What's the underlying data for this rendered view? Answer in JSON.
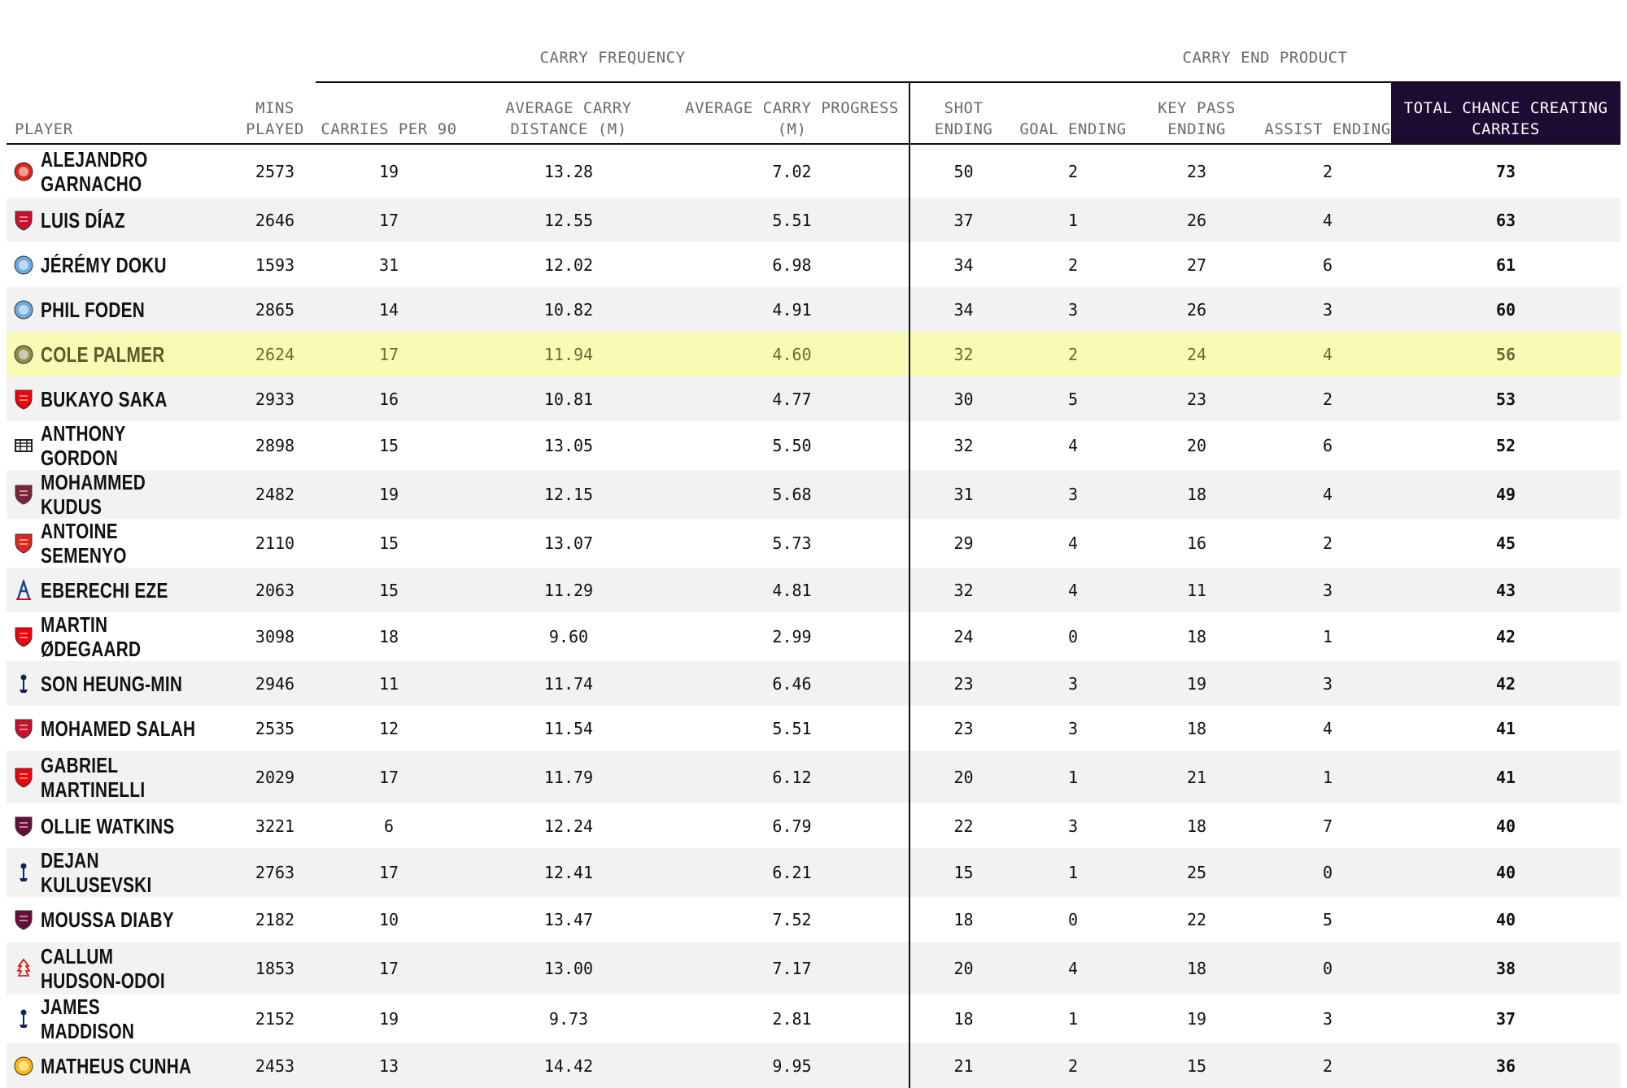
{
  "groups": {
    "frequency": "CARRY FREQUENCY",
    "end_product": "CARRY END PRODUCT"
  },
  "columns": {
    "player": "PLAYER",
    "mins": "MINS PLAYED",
    "carries": "CARRIES PER 90",
    "distance": "AVERAGE CARRY DISTANCE (M)",
    "progress": "AVERAGE CARRY PROGRESS (M)",
    "shot": "SHOT ENDING",
    "goal": "GOAL ENDING",
    "keypass": "KEY PASS ENDING",
    "assist": "ASSIST ENDING",
    "total": "TOTAL CHANCE CREATING CARRIES"
  },
  "colors": {
    "highlight_row": "#f9fbb4",
    "total_header_bg": "#1c0b33",
    "stripe": "#f2f2f2",
    "man_utd": "#da291c",
    "liverpool": "#c8102e",
    "man_city": "#6cabdd",
    "chelsea": "#8a8f4a",
    "arsenal": "#ef0107",
    "newcastle": "#241f20",
    "west_ham": "#7a263a",
    "bournemouth": "#da291c",
    "crystal_palace": "#1b458f",
    "tottenham": "#132257",
    "aston_villa": "#670e36",
    "nottingham_forest": "#dd0000",
    "wolves": "#fdb913"
  },
  "rows": [
    {
      "player": "ALEJANDRO GARNACHO",
      "club": "man_utd",
      "icon": "man-utd-crest-icon",
      "mins": "2573",
      "carries": "19",
      "distance": "13.28",
      "progress": "7.02",
      "shot": "50",
      "goal": "2",
      "keypass": "23",
      "assist": "2",
      "total": "73"
    },
    {
      "player": "LUIS DÍAZ",
      "club": "liverpool",
      "icon": "liverpool-crest-icon",
      "mins": "2646",
      "carries": "17",
      "distance": "12.55",
      "progress": "5.51",
      "shot": "37",
      "goal": "1",
      "keypass": "26",
      "assist": "4",
      "total": "63"
    },
    {
      "player": "JÉRÉMY DOKU",
      "club": "man_city",
      "icon": "man-city-crest-icon",
      "mins": "1593",
      "carries": "31",
      "distance": "12.02",
      "progress": "6.98",
      "shot": "34",
      "goal": "2",
      "keypass": "27",
      "assist": "6",
      "total": "61"
    },
    {
      "player": "PHIL FODEN",
      "club": "man_city",
      "icon": "man-city-crest-icon",
      "mins": "2865",
      "carries": "14",
      "distance": "10.82",
      "progress": "4.91",
      "shot": "34",
      "goal": "3",
      "keypass": "26",
      "assist": "3",
      "total": "60"
    },
    {
      "player": "COLE PALMER",
      "club": "chelsea",
      "icon": "chelsea-crest-icon",
      "highlight": true,
      "mins": "2624",
      "carries": "17",
      "distance": "11.94",
      "progress": "4.60",
      "shot": "32",
      "goal": "2",
      "keypass": "24",
      "assist": "4",
      "total": "56"
    },
    {
      "player": "BUKAYO SAKA",
      "club": "arsenal",
      "icon": "arsenal-crest-icon",
      "mins": "2933",
      "carries": "16",
      "distance": "10.81",
      "progress": "4.77",
      "shot": "30",
      "goal": "5",
      "keypass": "23",
      "assist": "2",
      "total": "53"
    },
    {
      "player": "ANTHONY GORDON",
      "club": "newcastle",
      "icon": "newcastle-crest-icon",
      "mins": "2898",
      "carries": "15",
      "distance": "13.05",
      "progress": "5.50",
      "shot": "32",
      "goal": "4",
      "keypass": "20",
      "assist": "6",
      "total": "52"
    },
    {
      "player": "MOHAMMED KUDUS",
      "club": "west_ham",
      "icon": "west-ham-crest-icon",
      "mins": "2482",
      "carries": "19",
      "distance": "12.15",
      "progress": "5.68",
      "shot": "31",
      "goal": "3",
      "keypass": "18",
      "assist": "4",
      "total": "49"
    },
    {
      "player": "ANTOINE SEMENYO",
      "club": "bournemouth",
      "icon": "bournemouth-crest-icon",
      "mins": "2110",
      "carries": "15",
      "distance": "13.07",
      "progress": "5.73",
      "shot": "29",
      "goal": "4",
      "keypass": "16",
      "assist": "2",
      "total": "45"
    },
    {
      "player": "EBERECHI EZE",
      "club": "crystal_palace",
      "icon": "crystal-palace-crest-icon",
      "mins": "2063",
      "carries": "15",
      "distance": "11.29",
      "progress": "4.81",
      "shot": "32",
      "goal": "4",
      "keypass": "11",
      "assist": "3",
      "total": "43"
    },
    {
      "player": "MARTIN ØDEGAARD",
      "club": "arsenal",
      "icon": "arsenal-crest-icon",
      "mins": "3098",
      "carries": "18",
      "distance": "9.60",
      "progress": "2.99",
      "shot": "24",
      "goal": "0",
      "keypass": "18",
      "assist": "1",
      "total": "42"
    },
    {
      "player": "SON HEUNG-MIN",
      "club": "tottenham",
      "icon": "tottenham-crest-icon",
      "mins": "2946",
      "carries": "11",
      "distance": "11.74",
      "progress": "6.46",
      "shot": "23",
      "goal": "3",
      "keypass": "19",
      "assist": "3",
      "total": "42"
    },
    {
      "player": "MOHAMED SALAH",
      "club": "liverpool",
      "icon": "liverpool-crest-icon",
      "mins": "2535",
      "carries": "12",
      "distance": "11.54",
      "progress": "5.51",
      "shot": "23",
      "goal": "3",
      "keypass": "18",
      "assist": "4",
      "total": "41"
    },
    {
      "player": "GABRIEL MARTINELLI",
      "club": "arsenal",
      "icon": "arsenal-crest-icon",
      "mins": "2029",
      "carries": "17",
      "distance": "11.79",
      "progress": "6.12",
      "shot": "20",
      "goal": "1",
      "keypass": "21",
      "assist": "1",
      "total": "41"
    },
    {
      "player": "OLLIE WATKINS",
      "club": "aston_villa",
      "icon": "aston-villa-crest-icon",
      "mins": "3221",
      "carries": "6",
      "distance": "12.24",
      "progress": "6.79",
      "shot": "22",
      "goal": "3",
      "keypass": "18",
      "assist": "7",
      "total": "40"
    },
    {
      "player": "DEJAN KULUSEVSKI",
      "club": "tottenham",
      "icon": "tottenham-crest-icon",
      "mins": "2763",
      "carries": "17",
      "distance": "12.41",
      "progress": "6.21",
      "shot": "15",
      "goal": "1",
      "keypass": "25",
      "assist": "0",
      "total": "40"
    },
    {
      "player": "MOUSSA DIABY",
      "club": "aston_villa",
      "icon": "aston-villa-crest-icon",
      "mins": "2182",
      "carries": "10",
      "distance": "13.47",
      "progress": "7.52",
      "shot": "18",
      "goal": "0",
      "keypass": "22",
      "assist": "5",
      "total": "40"
    },
    {
      "player": "CALLUM HUDSON-ODOI",
      "club": "nottingham_forest",
      "icon": "nottingham-forest-crest-icon",
      "mins": "1853",
      "carries": "17",
      "distance": "13.00",
      "progress": "7.17",
      "shot": "20",
      "goal": "4",
      "keypass": "18",
      "assist": "0",
      "total": "38"
    },
    {
      "player": "JAMES MADDISON",
      "club": "tottenham",
      "icon": "tottenham-crest-icon",
      "mins": "2152",
      "carries": "19",
      "distance": "9.73",
      "progress": "2.81",
      "shot": "18",
      "goal": "1",
      "keypass": "19",
      "assist": "3",
      "total": "37"
    },
    {
      "player": "MATHEUS CUNHA",
      "club": "wolves",
      "icon": "wolves-crest-icon",
      "mins": "2453",
      "carries": "13",
      "distance": "14.42",
      "progress": "9.95",
      "shot": "21",
      "goal": "2",
      "keypass": "15",
      "assist": "2",
      "total": "36"
    }
  ],
  "chart_data": {
    "type": "table",
    "column_groups": [
      {
        "name": "CARRY FREQUENCY",
        "columns": [
          "CARRIES PER 90",
          "AVERAGE CARRY DISTANCE (M)",
          "AVERAGE CARRY PROGRESS (M)"
        ]
      },
      {
        "name": "CARRY END PRODUCT",
        "columns": [
          "SHOT ENDING",
          "GOAL ENDING",
          "KEY PASS ENDING",
          "ASSIST ENDING",
          "TOTAL CHANCE CREATING CARRIES"
        ]
      }
    ],
    "columns": [
      "PLAYER",
      "MINS PLAYED",
      "CARRIES PER 90",
      "AVERAGE CARRY DISTANCE (M)",
      "AVERAGE CARRY PROGRESS (M)",
      "SHOT ENDING",
      "GOAL ENDING",
      "KEY PASS ENDING",
      "ASSIST ENDING",
      "TOTAL CHANCE CREATING CARRIES"
    ],
    "rows": [
      [
        "ALEJANDRO GARNACHO",
        2573,
        19,
        13.28,
        7.02,
        50,
        2,
        23,
        2,
        73
      ],
      [
        "LUIS DÍAZ",
        2646,
        17,
        12.55,
        5.51,
        37,
        1,
        26,
        4,
        63
      ],
      [
        "JÉRÉMY DOKU",
        1593,
        31,
        12.02,
        6.98,
        34,
        2,
        27,
        6,
        61
      ],
      [
        "PHIL FODEN",
        2865,
        14,
        10.82,
        4.91,
        34,
        3,
        26,
        3,
        60
      ],
      [
        "COLE PALMER",
        2624,
        17,
        11.94,
        4.6,
        32,
        2,
        24,
        4,
        56
      ],
      [
        "BUKAYO SAKA",
        2933,
        16,
        10.81,
        4.77,
        30,
        5,
        23,
        2,
        53
      ],
      [
        "ANTHONY GORDON",
        2898,
        15,
        13.05,
        5.5,
        32,
        4,
        20,
        6,
        52
      ],
      [
        "MOHAMMED KUDUS",
        2482,
        19,
        12.15,
        5.68,
        31,
        3,
        18,
        4,
        49
      ],
      [
        "ANTOINE SEMENYO",
        2110,
        15,
        13.07,
        5.73,
        29,
        4,
        16,
        2,
        45
      ],
      [
        "EBERECHI EZE",
        2063,
        15,
        11.29,
        4.81,
        32,
        4,
        11,
        3,
        43
      ],
      [
        "MARTIN ØDEGAARD",
        3098,
        18,
        9.6,
        2.99,
        24,
        0,
        18,
        1,
        42
      ],
      [
        "SON HEUNG-MIN",
        2946,
        11,
        11.74,
        6.46,
        23,
        3,
        19,
        3,
        42
      ],
      [
        "MOHAMED SALAH",
        2535,
        12,
        11.54,
        5.51,
        23,
        3,
        18,
        4,
        41
      ],
      [
        "GABRIEL MARTINELLI",
        2029,
        17,
        11.79,
        6.12,
        20,
        1,
        21,
        1,
        41
      ],
      [
        "OLLIE WATKINS",
        3221,
        6,
        12.24,
        6.79,
        22,
        3,
        18,
        7,
        40
      ],
      [
        "DEJAN KULUSEVSKI",
        2763,
        17,
        12.41,
        6.21,
        15,
        1,
        25,
        0,
        40
      ],
      [
        "MOUSSA DIABY",
        2182,
        10,
        13.47,
        7.52,
        18,
        0,
        22,
        5,
        40
      ],
      [
        "CALLUM HUDSON-ODOI",
        1853,
        17,
        13.0,
        7.17,
        20,
        4,
        18,
        0,
        38
      ],
      [
        "JAMES MADDISON",
        2152,
        19,
        9.73,
        2.81,
        18,
        1,
        19,
        3,
        37
      ],
      [
        "MATHEUS CUNHA",
        2453,
        13,
        14.42,
        9.95,
        21,
        2,
        15,
        2,
        36
      ]
    ],
    "highlighted_row": "COLE PALMER"
  }
}
